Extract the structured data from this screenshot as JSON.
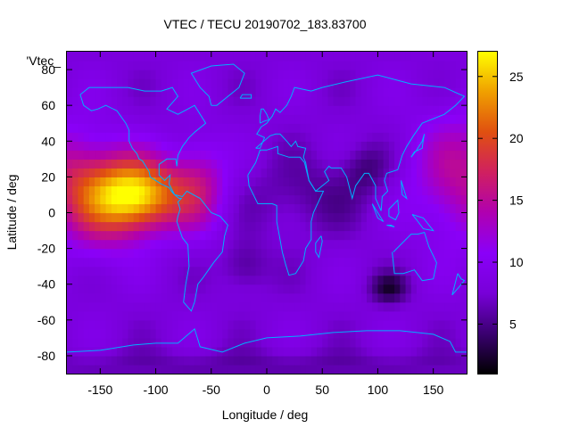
{
  "chart_data": {
    "type": "heatmap",
    "title": "VTEC / TECU 20190702_183.83700",
    "xlabel": "Longitude / deg",
    "ylabel": "Latitude / deg",
    "series_label": "'Vtec_",
    "xlim": [
      -180,
      180
    ],
    "ylim": [
      -90,
      90
    ],
    "x_ticks": [
      -150,
      -100,
      -50,
      0,
      50,
      100,
      150
    ],
    "y_ticks": [
      -80,
      -60,
      -40,
      -20,
      0,
      20,
      40,
      60,
      80
    ],
    "colorbar": {
      "range": [
        1,
        27
      ],
      "ticks": [
        5,
        10,
        15,
        20,
        25
      ],
      "colormap": [
        "#000000",
        "#3a0070",
        "#7800d8",
        "#8a00f8",
        "#b000b0",
        "#d02060",
        "#e05010",
        "#f0a000",
        "#ffff00"
      ]
    },
    "grid_step_deg": [
      5,
      5
    ],
    "features": [
      {
        "lon": -115,
        "lat": 10,
        "sigma_lon": 28,
        "sigma_lat": 14,
        "amp": 17
      },
      {
        "lon": -150,
        "lat": 8,
        "sigma_lon": 25,
        "sigma_lat": 22,
        "amp": 7
      },
      {
        "lon": -60,
        "lat": 15,
        "sigma_lon": 18,
        "sigma_lat": 18,
        "amp": 6
      },
      {
        "lon": 180,
        "lat": 20,
        "sigma_lon": 35,
        "sigma_lat": 25,
        "amp": 7
      },
      {
        "lon": -180,
        "lat": 20,
        "sigma_lon": 20,
        "sigma_lat": 20,
        "amp": 5
      },
      {
        "lon": 40,
        "lat": 10,
        "sigma_lon": 40,
        "sigma_lat": 15,
        "amp": -2.5
      },
      {
        "lon": 110,
        "lat": -42,
        "sigma_lon": 12,
        "sigma_lat": 6,
        "amp": -5
      },
      {
        "lon": -20,
        "lat": -30,
        "sigma_lon": 15,
        "sigma_lat": 10,
        "amp": -3
      },
      {
        "lon": 90,
        "lat": 25,
        "sigma_lon": 15,
        "sigma_lat": 10,
        "amp": -3
      },
      {
        "lon": 0,
        "lat": -85,
        "sigma_lon": 200,
        "sigma_lat": 6,
        "amp": -2
      }
    ],
    "base_value": 8,
    "coastline_color": "#00b0ff",
    "coastlines": [
      [
        [
          -168,
          66
        ],
        [
          -160,
          70
        ],
        [
          -140,
          70
        ],
        [
          -125,
          70
        ],
        [
          -110,
          68
        ],
        [
          -95,
          68
        ],
        [
          -85,
          70
        ],
        [
          -80,
          65
        ],
        [
          -90,
          58
        ],
        [
          -80,
          55
        ],
        [
          -65,
          60
        ],
        [
          -60,
          55
        ],
        [
          -55,
          50
        ],
        [
          -65,
          45
        ],
        [
          -70,
          42
        ],
        [
          -76,
          37
        ],
        [
          -80,
          32
        ],
        [
          -81,
          26
        ],
        [
          -82,
          30
        ],
        [
          -90,
          30
        ],
        [
          -97,
          27
        ],
        [
          -97,
          21
        ],
        [
          -92,
          18
        ],
        [
          -87,
          21
        ],
        [
          -88,
          16
        ],
        [
          -83,
          10
        ],
        [
          -79,
          8
        ],
        [
          -77,
          8
        ],
        [
          -80,
          6
        ],
        [
          -78,
          2
        ],
        [
          -80,
          -2
        ],
        [
          -81,
          -5
        ],
        [
          -76,
          -14
        ],
        [
          -71,
          -18
        ],
        [
          -70,
          -30
        ],
        [
          -73,
          -40
        ],
        [
          -75,
          -50
        ],
        [
          -68,
          -55
        ],
        [
          -65,
          -50
        ],
        [
          -62,
          -40
        ],
        [
          -57,
          -36
        ],
        [
          -48,
          -28
        ],
        [
          -40,
          -22
        ],
        [
          -38,
          -13
        ],
        [
          -35,
          -7
        ],
        [
          -42,
          -2
        ],
        [
          -50,
          0
        ],
        [
          -60,
          8
        ],
        [
          -72,
          12
        ],
        [
          -76,
          9
        ],
        [
          -83,
          10
        ],
        [
          -86,
          12
        ],
        [
          -88,
          14
        ],
        [
          -95,
          16
        ],
        [
          -105,
          20
        ],
        [
          -106,
          23
        ],
        [
          -112,
          29
        ],
        [
          -115,
          30
        ],
        [
          -117,
          33
        ],
        [
          -121,
          36
        ],
        [
          -124,
          40
        ],
        [
          -124,
          46
        ],
        [
          -127,
          50
        ],
        [
          -135,
          57
        ],
        [
          -145,
          60
        ],
        [
          -152,
          58
        ],
        [
          -158,
          57
        ],
        [
          -165,
          60
        ],
        [
          -168,
          66
        ]
      ],
      [
        [
          -50,
          60
        ],
        [
          -45,
          60
        ],
        [
          -25,
          70
        ],
        [
          -20,
          78
        ],
        [
          -30,
          83
        ],
        [
          -50,
          82
        ],
        [
          -68,
          78
        ],
        [
          -60,
          70
        ],
        [
          -52,
          65
        ],
        [
          -50,
          60
        ]
      ],
      [
        [
          -10,
          36
        ],
        [
          -6,
          36
        ],
        [
          -2,
          42
        ],
        [
          -9,
          44
        ],
        [
          -5,
          48
        ],
        [
          0,
          50
        ],
        [
          5,
          54
        ],
        [
          8,
          58
        ],
        [
          12,
          56
        ],
        [
          18,
          60
        ],
        [
          22,
          65
        ],
        [
          25,
          70
        ],
        [
          40,
          68
        ],
        [
          50,
          70
        ],
        [
          70,
          73
        ],
        [
          100,
          77
        ],
        [
          130,
          72
        ],
        [
          160,
          70
        ],
        [
          178,
          65
        ],
        [
          170,
          60
        ],
        [
          160,
          55
        ],
        [
          140,
          50
        ],
        [
          132,
          43
        ],
        [
          126,
          37
        ],
        [
          122,
          32
        ],
        [
          118,
          24
        ],
        [
          108,
          22
        ],
        [
          106,
          18
        ],
        [
          109,
          12
        ],
        [
          104,
          9
        ],
        [
          103,
          1
        ],
        [
          98,
          8
        ],
        [
          98,
          15
        ],
        [
          92,
          22
        ],
        [
          88,
          22
        ],
        [
          80,
          15
        ],
        [
          77,
          8
        ],
        [
          72,
          20
        ],
        [
          67,
          25
        ],
        [
          58,
          25
        ],
        [
          56,
          26
        ],
        [
          52,
          23
        ],
        [
          56,
          18
        ],
        [
          52,
          16
        ],
        [
          44,
          12
        ],
        [
          38,
          18
        ],
        [
          35,
          28
        ],
        [
          33,
          31
        ],
        [
          35,
          36
        ],
        [
          28,
          37
        ],
        [
          26,
          40
        ],
        [
          22,
          37
        ],
        [
          18,
          40
        ],
        [
          12,
          44
        ],
        [
          8,
          44
        ],
        [
          3,
          43
        ],
        [
          -10,
          36
        ]
      ],
      [
        [
          -17,
          21
        ],
        [
          -16,
          15
        ],
        [
          -8,
          5
        ],
        [
          5,
          5
        ],
        [
          9,
          4
        ],
        [
          9,
          -5
        ],
        [
          12,
          -15
        ],
        [
          14,
          -22
        ],
        [
          17,
          -29
        ],
        [
          20,
          -35
        ],
        [
          26,
          -34
        ],
        [
          33,
          -27
        ],
        [
          35,
          -20
        ],
        [
          40,
          -15
        ],
        [
          40,
          -5
        ],
        [
          42,
          0
        ],
        [
          51,
          12
        ],
        [
          44,
          12
        ],
        [
          38,
          18
        ],
        [
          34,
          28
        ],
        [
          30,
          31
        ],
        [
          20,
          31
        ],
        [
          10,
          33
        ],
        [
          10,
          37
        ],
        [
          0,
          35
        ],
        [
          -6,
          35
        ],
        [
          -10,
          28
        ],
        [
          -17,
          21
        ]
      ],
      [
        [
          113,
          -22
        ],
        [
          115,
          -34
        ],
        [
          123,
          -34
        ],
        [
          133,
          -32
        ],
        [
          140,
          -38
        ],
        [
          150,
          -37
        ],
        [
          153,
          -28
        ],
        [
          146,
          -19
        ],
        [
          142,
          -11
        ],
        [
          136,
          -12
        ],
        [
          130,
          -12
        ],
        [
          122,
          -17
        ],
        [
          114,
          -22
        ]
      ],
      [
        [
          -180,
          -78
        ],
        [
          -150,
          -77
        ],
        [
          -120,
          -74
        ],
        [
          -100,
          -73
        ],
        [
          -80,
          -73
        ],
        [
          -65,
          -65
        ],
        [
          -60,
          -75
        ],
        [
          -40,
          -78
        ],
        [
          -20,
          -73
        ],
        [
          0,
          -70
        ],
        [
          30,
          -69
        ],
        [
          60,
          -67
        ],
        [
          90,
          -66
        ],
        [
          120,
          -66
        ],
        [
          150,
          -68
        ],
        [
          165,
          -72
        ],
        [
          170,
          -78
        ],
        [
          180,
          -78
        ]
      ],
      [
        [
          -6,
          50
        ],
        [
          -3,
          51
        ],
        [
          2,
          52
        ],
        [
          0,
          55
        ],
        [
          -3,
          58
        ],
        [
          -5,
          58
        ],
        [
          -6,
          54
        ],
        [
          -6,
          50
        ]
      ],
      [
        [
          130,
          31
        ],
        [
          133,
          34
        ],
        [
          140,
          36
        ],
        [
          141,
          41
        ],
        [
          142,
          44
        ],
        [
          140,
          40
        ],
        [
          135,
          35
        ],
        [
          130,
          31
        ]
      ],
      [
        [
          95,
          5
        ],
        [
          100,
          0
        ],
        [
          105,
          -5
        ],
        [
          100,
          -3
        ],
        [
          95,
          5
        ]
      ],
      [
        [
          108,
          -7
        ],
        [
          115,
          -8
        ],
        [
          112,
          -7
        ],
        [
          108,
          -7
        ]
      ],
      [
        [
          110,
          2
        ],
        [
          118,
          7
        ],
        [
          119,
          0
        ],
        [
          116,
          -4
        ],
        [
          110,
          -2
        ],
        [
          110,
          2
        ]
      ],
      [
        [
          131,
          -1
        ],
        [
          141,
          -3
        ],
        [
          150,
          -10
        ],
        [
          141,
          -9
        ],
        [
          135,
          -4
        ],
        [
          131,
          -1
        ]
      ],
      [
        [
          172,
          -34
        ],
        [
          175,
          -37
        ],
        [
          178,
          -38
        ],
        [
          174,
          -41
        ],
        [
          167,
          -46
        ],
        [
          172,
          -34
        ]
      ],
      [
        [
          49,
          -13
        ],
        [
          50,
          -16
        ],
        [
          47,
          -25
        ],
        [
          44,
          -22
        ],
        [
          44,
          -17
        ],
        [
          49,
          -13
        ]
      ],
      [
        [
          -24,
          64
        ],
        [
          -14,
          64
        ],
        [
          -14,
          66
        ],
        [
          -22,
          66
        ],
        [
          -24,
          64
        ]
      ],
      [
        [
          121,
          18
        ],
        [
          126,
          8
        ],
        [
          122,
          10
        ],
        [
          121,
          18
        ]
      ]
    ]
  }
}
